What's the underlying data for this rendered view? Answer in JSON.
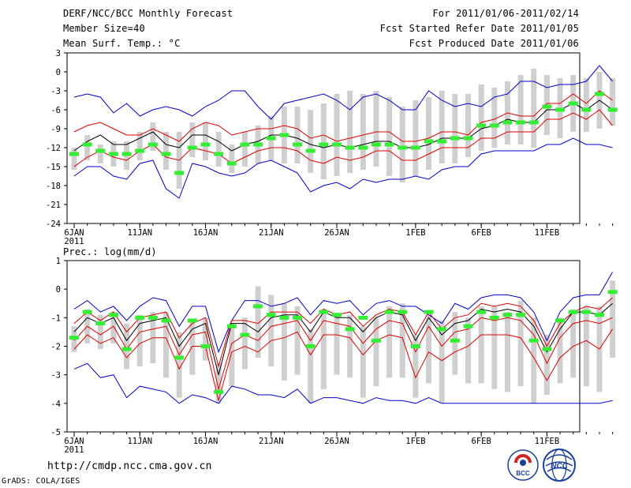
{
  "header": {
    "title": "DERF/NCC/BCC Monthly Forecast",
    "member_size": "Member Size=40",
    "variable1": "Mean Surf. Temp.: °C",
    "for_range": "For 2011/01/06-2011/02/14",
    "fcst_started": "Fcst Started Refer Date 2011/01/05",
    "fcst_produced": "Fcst Produced Date 2011/01/06"
  },
  "footer": {
    "url": "http://cmdp.ncc.cma.gov.cn",
    "grads": "GrADS: COLA/IGES",
    "logo_bcc": "BCC",
    "logo_ncc": "NCC"
  },
  "colors": {
    "envelope": "#0000cc",
    "spread": "#dd0000",
    "mean": "#000000",
    "obs": "#33ee33",
    "bar": "#cfcfcf"
  },
  "chart_data": [
    {
      "type": "line",
      "name": "temperature",
      "title": "Mean Surf. Temp.: °C",
      "ylim": [
        -24,
        3
      ],
      "yticks": [
        3,
        0,
        -3,
        -6,
        -9,
        -12,
        -15,
        -18,
        -21,
        -24
      ],
      "x_days": 40,
      "xticks": [
        {
          "day": 0,
          "label": "6JAN",
          "label2": "2011"
        },
        {
          "day": 5,
          "label": "11JAN"
        },
        {
          "day": 10,
          "label": "16JAN"
        },
        {
          "day": 15,
          "label": "21JAN"
        },
        {
          "day": 20,
          "label": "26JAN"
        },
        {
          "day": 26,
          "label": "1FEB"
        },
        {
          "day": 31,
          "label": "6FEB"
        },
        {
          "day": 36,
          "label": "11FEB"
        }
      ],
      "series": [
        {
          "name": "max",
          "values": [
            -4,
            -3.5,
            -4,
            -6.5,
            -5,
            -7,
            -6,
            -5.5,
            -6,
            -7,
            -5.5,
            -4.5,
            -3,
            -3,
            -5.5,
            -7.5,
            -5,
            -4.5,
            -4,
            -3.5,
            -4.5,
            -6,
            -4,
            -3.5,
            -4.5,
            -6,
            -6,
            -3,
            -4.5,
            -5.5,
            -5,
            -5.5,
            -4,
            -3.5,
            -1.5,
            -1.5,
            -2.5,
            -2,
            -2,
            -1.5,
            1,
            -1.5
          ]
        },
        {
          "name": "upper",
          "values": [
            -9.5,
            -8.5,
            -8,
            -9,
            -10,
            -10,
            -9,
            -10,
            -11,
            -9,
            -8,
            -8.5,
            -10,
            -9.5,
            -9,
            -9,
            -8.5,
            -9,
            -10.5,
            -10,
            -11,
            -10.5,
            -10,
            -9.5,
            -9.5,
            -11,
            -11,
            -10.5,
            -9.5,
            -9.5,
            -10,
            -8,
            -7.5,
            -6.5,
            -7,
            -7,
            -5,
            -5,
            -3.5,
            -5,
            -3,
            -4.5
          ]
        },
        {
          "name": "mean",
          "values": [
            -12.5,
            -11,
            -10,
            -11.5,
            -11.5,
            -10.5,
            -9.5,
            -11.5,
            -12,
            -10,
            -10,
            -11,
            -12.5,
            -11.5,
            -11,
            -10,
            -10,
            -10.5,
            -11.5,
            -12,
            -11.5,
            -12,
            -11.5,
            -11,
            -11,
            -12,
            -12,
            -11.5,
            -10.5,
            -10.5,
            -10.5,
            -9,
            -8.5,
            -7.5,
            -8,
            -8,
            -6,
            -6,
            -5,
            -6,
            -4.5,
            -6
          ]
        },
        {
          "name": "lower",
          "values": [
            -15,
            -13.5,
            -12.5,
            -13.5,
            -14,
            -12.5,
            -11.5,
            -13.5,
            -14,
            -12,
            -12.5,
            -13,
            -14.5,
            -13.5,
            -12.5,
            -12,
            -12,
            -12.5,
            -14,
            -14.5,
            -13.5,
            -14,
            -13.5,
            -12.5,
            -12.5,
            -14,
            -14,
            -13,
            -12,
            -12,
            -12,
            -10.5,
            -10.5,
            -9.5,
            -9.5,
            -9.5,
            -7.5,
            -7.5,
            -6.5,
            -7.5,
            -6,
            -8.5
          ]
        },
        {
          "name": "min",
          "values": [
            -16.5,
            -15,
            -15,
            -16.5,
            -17,
            -14.5,
            -14,
            -18.5,
            -20,
            -14.5,
            -15,
            -16,
            -16.5,
            -16,
            -14.5,
            -14,
            -15,
            -16,
            -19,
            -18,
            -17.5,
            -18.5,
            -17,
            -17.5,
            -17,
            -17,
            -16.5,
            -17,
            -15.5,
            -15,
            -15,
            -13,
            -12.5,
            -12.5,
            -12.5,
            -12.5,
            -11.5,
            -11.5,
            -10.5,
            -11.5,
            -11.5,
            -12
          ]
        }
      ],
      "obs": [
        -13,
        -11.5,
        -12.5,
        -13,
        -13,
        -12.5,
        -11.5,
        -13,
        -16,
        -12,
        -11.5,
        -13,
        -14.5,
        -11.5,
        -11.5,
        -10.5,
        -10,
        -11.5,
        -12.5,
        -11.5,
        -11.5,
        -12,
        -12,
        -11.5,
        -11.5,
        -12,
        -12,
        -11,
        -11,
        -10.5,
        -10.5,
        -8.5,
        -8.5,
        -8,
        -8,
        -8,
        -5.5,
        -6,
        -5,
        -6,
        -3.5,
        -6
      ],
      "bars": [
        [
          -15.5,
          -12
        ],
        [
          -14,
          -10
        ],
        [
          -14.5,
          -11.5
        ],
        [
          -15,
          -11
        ],
        [
          -15.5,
          -11
        ],
        [
          -14,
          -9.5
        ],
        [
          -12.5,
          -8
        ],
        [
          -15.5,
          -9.5
        ],
        [
          -18.5,
          -9.5
        ],
        [
          -13.5,
          -8
        ],
        [
          -14,
          -8
        ],
        [
          -15,
          -9.5
        ],
        [
          -16,
          -11.5
        ],
        [
          -15,
          -9.5
        ],
        [
          -14.5,
          -8.5
        ],
        [
          -14,
          -7
        ],
        [
          -14.5,
          -5.5
        ],
        [
          -14.5,
          -5.5
        ],
        [
          -16,
          -6
        ],
        [
          -17,
          -5
        ],
        [
          -16.5,
          -3.5
        ],
        [
          -16,
          -3
        ],
        [
          -15.5,
          -3.5
        ],
        [
          -15,
          -3
        ],
        [
          -16.5,
          -4
        ],
        [
          -17.5,
          -5.5
        ],
        [
          -16.5,
          -4.5
        ],
        [
          -15.5,
          -4
        ],
        [
          -14.5,
          -3
        ],
        [
          -14.5,
          -3.5
        ],
        [
          -13.5,
          -3.5
        ],
        [
          -12.5,
          -2
        ],
        [
          -12,
          -2.5
        ],
        [
          -11.5,
          -1.5
        ],
        [
          -11.5,
          -0.5
        ],
        [
          -12,
          0.5
        ],
        [
          -10,
          -0.5
        ],
        [
          -10.5,
          -1
        ],
        [
          -9.5,
          -0.5
        ],
        [
          -9.5,
          -1
        ],
        [
          -9,
          0
        ],
        [
          -8.5,
          -1
        ]
      ]
    },
    {
      "type": "line",
      "name": "precipitation",
      "title": "Prec.: log(mm/d)",
      "ylim": [
        -5,
        1
      ],
      "yticks": [
        1,
        0,
        -1,
        -2,
        -3,
        -4,
        -5
      ],
      "x_days": 40,
      "xticks": [
        {
          "day": 0,
          "label": "6JAN",
          "label2": "2011"
        },
        {
          "day": 5,
          "label": "11JAN"
        },
        {
          "day": 10,
          "label": "16JAN"
        },
        {
          "day": 15,
          "label": "21JAN"
        },
        {
          "day": 20,
          "label": "26JAN"
        },
        {
          "day": 26,
          "label": "1FEB"
        },
        {
          "day": 31,
          "label": "6FEB"
        },
        {
          "day": 36,
          "label": "11FEB"
        }
      ],
      "series": [
        {
          "name": "max",
          "values": [
            -0.7,
            -0.4,
            -0.8,
            -0.6,
            -1.1,
            -0.6,
            -0.3,
            -0.4,
            -1.3,
            -0.6,
            -0.6,
            -2.2,
            -1.1,
            -0.4,
            -0.4,
            -0.6,
            -0.5,
            -0.3,
            -0.9,
            -0.4,
            -0.5,
            -0.4,
            -0.9,
            -0.5,
            -0.4,
            -0.6,
            -0.6,
            -0.9,
            -1.2,
            -0.5,
            -0.7,
            -0.3,
            -0.2,
            -0.2,
            -0.3,
            -0.8,
            -1.8,
            -0.8,
            -0.3,
            -0.2,
            -0.2,
            0.6
          ]
        },
        {
          "name": "upper",
          "values": [
            -1.2,
            -0.8,
            -1.1,
            -0.8,
            -1.5,
            -1.0,
            -0.9,
            -0.8,
            -1.7,
            -1.2,
            -1.0,
            -2.7,
            -1.1,
            -1.1,
            -1.2,
            -0.8,
            -0.8,
            -0.8,
            -1.2,
            -0.7,
            -0.9,
            -0.8,
            -1.3,
            -0.9,
            -0.7,
            -0.8,
            -1.6,
            -0.8,
            -1.4,
            -1.0,
            -0.9,
            -0.5,
            -0.6,
            -0.5,
            -0.6,
            -1.1,
            -2.0,
            -1.2,
            -0.8,
            -0.6,
            -0.7,
            -0.3
          ]
        },
        {
          "name": "mean",
          "values": [
            -1.5,
            -1.0,
            -1.2,
            -1.0,
            -1.8,
            -1.2,
            -1.1,
            -1.0,
            -2.0,
            -1.4,
            -1.2,
            -3.0,
            -1.2,
            -1.2,
            -1.5,
            -1.0,
            -0.9,
            -0.9,
            -1.5,
            -0.8,
            -1.0,
            -1.0,
            -1.5,
            -1.0,
            -0.8,
            -0.9,
            -1.8,
            -1.0,
            -1.6,
            -1.2,
            -1.1,
            -0.7,
            -0.8,
            -0.7,
            -0.8,
            -1.3,
            -2.2,
            -1.4,
            -0.8,
            -0.8,
            -0.9,
            -0.5
          ]
        },
        {
          "name": "lower",
          "values": [
            -1.8,
            -1.3,
            -1.6,
            -1.3,
            -2.1,
            -1.5,
            -1.4,
            -1.3,
            -2.3,
            -1.6,
            -1.5,
            -3.5,
            -1.9,
            -1.6,
            -1.8,
            -1.3,
            -1.2,
            -1.1,
            -1.8,
            -1.1,
            -1.2,
            -1.3,
            -1.9,
            -1.4,
            -1.1,
            -1.2,
            -2.2,
            -1.3,
            -2.0,
            -1.5,
            -1.4,
            -1.0,
            -1.1,
            -1.0,
            -1.1,
            -1.6,
            -2.6,
            -1.7,
            -1.2,
            -1.1,
            -1.2,
            -1.0
          ]
        },
        {
          "name": "lower2",
          "values": [
            -2.1,
            -1.6,
            -1.9,
            -1.7,
            -2.4,
            -1.9,
            -1.7,
            -1.7,
            -2.8,
            -2.0,
            -2.0,
            -3.9,
            -2.2,
            -2.0,
            -2.2,
            -1.8,
            -1.7,
            -1.5,
            -2.3,
            -1.6,
            -1.6,
            -1.7,
            -2.3,
            -1.8,
            -1.6,
            -1.7,
            -3.1,
            -2.2,
            -2.5,
            -2.2,
            -2.0,
            -1.6,
            -1.6,
            -1.6,
            -1.7,
            -2.4,
            -3.2,
            -2.4,
            -2.0,
            -1.8,
            -2.1,
            -1.4
          ]
        },
        {
          "name": "min",
          "values": [
            -2.8,
            -2.6,
            -3.1,
            -3.0,
            -3.8,
            -3.4,
            -3.5,
            -3.6,
            -4.0,
            -3.7,
            -3.8,
            -4.0,
            -3.4,
            -3.5,
            -3.7,
            -3.7,
            -3.8,
            -3.5,
            -4.0,
            -3.8,
            -3.8,
            -3.9,
            -4.0,
            -3.8,
            -3.9,
            -3.9,
            -4.0,
            -3.8,
            -4.0,
            -4.0,
            -4.0,
            -4.0,
            -4.0,
            -4.0,
            -4.0,
            -4.0,
            -4.0,
            -4.0,
            -4.0,
            -4.0,
            -4.0,
            -3.9
          ]
        }
      ],
      "obs": [
        -1.7,
        -0.8,
        -1.2,
        -0.9,
        -2.1,
        -1.0,
        -1.0,
        -1.1,
        -2.4,
        -1.1,
        -2.0,
        -3.6,
        -1.3,
        -1.6,
        -0.6,
        -0.9,
        -1.0,
        -1.0,
        -2.0,
        -0.8,
        -0.9,
        -1.4,
        -1.0,
        -1.8,
        -0.8,
        -0.8,
        -2.0,
        -0.8,
        -1.4,
        -1.8,
        -1.3,
        -0.8,
        -1.0,
        -0.9,
        -0.9,
        -1.8,
        -2.1,
        -1.1,
        -0.8,
        -0.8,
        -0.9,
        -0.1
      ],
      "bars": [
        [
          -2.2,
          -1.3
        ],
        [
          -1.9,
          -0.7
        ],
        [
          -2.1,
          -0.9
        ],
        [
          -1.9,
          -0.8
        ],
        [
          -2.8,
          -1.2
        ],
        [
          -2.7,
          -0.9
        ],
        [
          -2.6,
          -0.8
        ],
        [
          -3.1,
          -0.8
        ],
        [
          -3.8,
          -1.5
        ],
        [
          -3.0,
          -1.1
        ],
        [
          -2.5,
          -1.0
        ],
        [
          -4.0,
          -2.6
        ],
        [
          -3.4,
          -1.2
        ],
        [
          -2.8,
          -1.0
        ],
        [
          -2.4,
          0.1
        ],
        [
          -2.7,
          -0.2
        ],
        [
          -3.2,
          -0.5
        ],
        [
          -3.0,
          -0.6
        ],
        [
          -4.0,
          -1.4
        ],
        [
          -3.5,
          -0.7
        ],
        [
          -3.0,
          -0.9
        ],
        [
          -3.1,
          -0.9
        ],
        [
          -3.8,
          -1.3
        ],
        [
          -3.4,
          -1.0
        ],
        [
          -3.1,
          -0.6
        ],
        [
          -3.1,
          -0.5
        ],
        [
          -3.8,
          -1.6
        ],
        [
          -3.3,
          -0.9
        ],
        [
          -4.0,
          -1.1
        ],
        [
          -3.0,
          -0.8
        ],
        [
          -3.3,
          -1.0
        ],
        [
          -3.3,
          -0.6
        ],
        [
          -3.5,
          -0.6
        ],
        [
          -3.6,
          -0.8
        ],
        [
          -3.4,
          -0.4
        ],
        [
          -4.0,
          -1.0
        ],
        [
          -3.7,
          -1.6
        ],
        [
          -3.3,
          -1.0
        ],
        [
          -3.1,
          -0.7
        ],
        [
          -3.4,
          -0.6
        ],
        [
          -3.6,
          -0.6
        ],
        [
          -2.4,
          0.3
        ]
      ]
    }
  ]
}
